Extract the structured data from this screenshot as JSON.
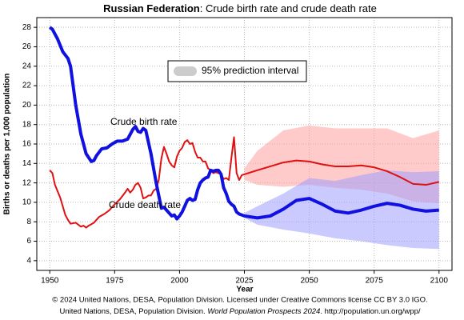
{
  "chart_data": {
    "type": "line",
    "title_bold": "Russian Federation",
    "title": ": Crude birth rate and crude death rate",
    "y_label": "Births or deaths per 1,000 population",
    "x_label": "Year",
    "footer_line1": "© 2024 United Nations, DESA, Population Division. Licensed under Creative Commons license CC BY 3.0 IGO.",
    "footer_line2": [
      "United Nations, DESA, Population Division. ",
      "World Population Prospects 2024",
      ". http://population.un.org/wpp/"
    ],
    "annotations": [
      "Crude birth rate",
      "Crude death rate"
    ],
    "legend": {
      "label": "95% prediction interval",
      "color": "#cccccc"
    },
    "xlim": [
      1945,
      2105
    ],
    "ylim": [
      3,
      29
    ],
    "xticks": [
      1950,
      1975,
      2000,
      2025,
      2050,
      2075,
      2100
    ],
    "yticks": [
      4,
      6,
      8,
      10,
      12,
      14,
      16,
      18,
      20,
      22,
      24,
      26,
      28
    ],
    "grid": true,
    "bands": [
      {
        "color": "#ff9f9f",
        "opacity": 0.55,
        "x": [
          2025,
          2030,
          2040,
          2050,
          2060,
          2070,
          2080,
          2090,
          2100
        ],
        "lower": [
          12.3,
          11.8,
          11.6,
          11.8,
          11.5,
          11.3,
          10.9,
          10.1,
          9.9
        ],
        "upper": [
          13.5,
          15.3,
          17.4,
          17.9,
          17.6,
          17.6,
          17.6,
          16.6,
          17.4
        ]
      },
      {
        "color": "#9f9fff",
        "opacity": 0.55,
        "x": [
          2025,
          2030,
          2040,
          2050,
          2060,
          2070,
          2080,
          2090,
          2100
        ],
        "lower": [
          8.4,
          7.7,
          7.2,
          6.8,
          6.3,
          6.0,
          5.6,
          5.3,
          5.2
        ],
        "upper": [
          8.9,
          9.6,
          10.9,
          12.5,
          12.2,
          12.8,
          13.3,
          13.1,
          13.2
        ]
      }
    ],
    "series": [
      {
        "color": "#e01010",
        "width": 2,
        "x": [
          1950,
          1951,
          1952,
          1954,
          1956,
          1957,
          1958,
          1960,
          1962,
          1963,
          1964,
          1965,
          1967,
          1969,
          1971,
          1973,
          1975,
          1977,
          1979,
          1980,
          1981,
          1982,
          1983,
          1984,
          1985,
          1986,
          1987,
          1988,
          1989,
          1990,
          1991,
          1992,
          1993,
          1994,
          1995,
          1996,
          1997,
          1998,
          1999,
          2000,
          2001,
          2002,
          2003,
          2004,
          2005,
          2006,
          2007,
          2008,
          2009,
          2010,
          2011,
          2012,
          2013,
          2014,
          2015,
          2016,
          2017,
          2018,
          2019,
          2020,
          2021,
          2022,
          2023,
          2024,
          2030,
          2035,
          2040,
          2045,
          2050,
          2055,
          2060,
          2065,
          2070,
          2075,
          2080,
          2085,
          2090,
          2095,
          2100
        ],
        "values": [
          13.3,
          13,
          11.8,
          10.5,
          8.7,
          8.2,
          7.8,
          7.9,
          7.5,
          7.6,
          7.4,
          7.6,
          7.9,
          8.5,
          8.8,
          9.2,
          9.8,
          10.3,
          11,
          11.4,
          11,
          11.3,
          11.8,
          12,
          11.5,
          10.4,
          10.5,
          10.7,
          10.7,
          11.2,
          11.4,
          12.3,
          14.5,
          15.7,
          15,
          14.2,
          13.8,
          13.6,
          14.7,
          15.3,
          15.6,
          16.2,
          16.4,
          16,
          16.1,
          15.2,
          14.6,
          14.6,
          14.2,
          14.2,
          13.5,
          13.3,
          13,
          13.1,
          13,
          12.9,
          12.4,
          12.5,
          12.3,
          14.6,
          16.7,
          13,
          12.3,
          12.8,
          13.3,
          13.7,
          14.1,
          14.3,
          14.2,
          13.9,
          13.7,
          13.7,
          13.8,
          13.6,
          13.2,
          12.6,
          11.9,
          11.8,
          12.1
        ]
      },
      {
        "color": "#1010e0",
        "width": 4,
        "x": [
          1950,
          1951,
          1953,
          1955,
          1957,
          1958,
          1960,
          1962,
          1964,
          1966,
          1967,
          1968,
          1970,
          1972,
          1974,
          1976,
          1978,
          1980,
          1982,
          1983,
          1984,
          1985,
          1986,
          1987,
          1988,
          1989,
          1990,
          1991,
          1992,
          1993,
          1994,
          1995,
          1996,
          1997,
          1998,
          1999,
          2000,
          2001,
          2002,
          2003,
          2004,
          2005,
          2006,
          2007,
          2008,
          2009,
          2010,
          2011,
          2012,
          2013,
          2014,
          2015,
          2016,
          2017,
          2018,
          2019,
          2020,
          2021,
          2022,
          2023,
          2025,
          2030,
          2035,
          2040,
          2045,
          2050,
          2055,
          2060,
          2065,
          2070,
          2075,
          2080,
          2085,
          2090,
          2095,
          2100
        ],
        "values": [
          28,
          27.8,
          26.8,
          25.5,
          24.8,
          24,
          20,
          17,
          15,
          14.2,
          14.3,
          14.8,
          15.5,
          15.6,
          16,
          16.3,
          16.3,
          16.5,
          17.5,
          17.8,
          17.3,
          17.2,
          17.6,
          17.4,
          16.2,
          15,
          13.5,
          12,
          10.7,
          9.4,
          9.5,
          9.2,
          8.9,
          8.6,
          8.7,
          8.3,
          8.6,
          9,
          9.6,
          10.2,
          10.4,
          10.2,
          10.3,
          11.3,
          12,
          12.3,
          12.5,
          12.6,
          13.3,
          13.2,
          13.3,
          13.3,
          12.9,
          11.5,
          10.9,
          10.1,
          9.8,
          9.6,
          9,
          8.8,
          8.6,
          8.4,
          8.6,
          9.3,
          10.2,
          10.4,
          9.8,
          9.1,
          8.9,
          9.2,
          9.6,
          9.9,
          9.7,
          9.3,
          9.1,
          9.2
        ]
      }
    ]
  }
}
